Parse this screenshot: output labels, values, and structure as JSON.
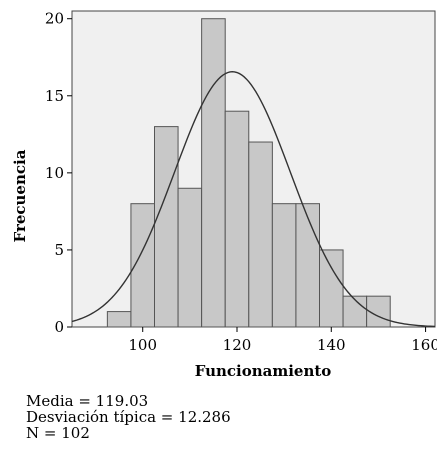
{
  "chart_data": {
    "type": "bar",
    "xlabel": "Funcionamiento",
    "ylabel": "Frecuencia",
    "xlim": [
      85,
      162
    ],
    "ylim": [
      0,
      20.5
    ],
    "x_ticks": [
      100,
      120,
      140,
      160
    ],
    "y_ticks": [
      0,
      5,
      10,
      15,
      20
    ],
    "bin_width": 5,
    "bins": [
      {
        "start": 92.5,
        "end": 97.5,
        "count": 1
      },
      {
        "start": 97.5,
        "end": 102.5,
        "count": 8
      },
      {
        "start": 102.5,
        "end": 107.5,
        "count": 13
      },
      {
        "start": 107.5,
        "end": 112.5,
        "count": 9
      },
      {
        "start": 112.5,
        "end": 117.5,
        "count": 20
      },
      {
        "start": 117.5,
        "end": 122.5,
        "count": 14
      },
      {
        "start": 122.5,
        "end": 127.5,
        "count": 12
      },
      {
        "start": 127.5,
        "end": 132.5,
        "count": 8
      },
      {
        "start": 132.5,
        "end": 137.5,
        "count": 8
      },
      {
        "start": 137.5,
        "end": 142.5,
        "count": 5
      },
      {
        "start": 142.5,
        "end": 147.5,
        "count": 2
      },
      {
        "start": 147.5,
        "end": 152.5,
        "count": 2
      }
    ],
    "normal_curve": {
      "mean": 119.03,
      "sd": 12.286,
      "n": 102
    },
    "colors": {
      "plot_background": "#f0f0f0",
      "bar_fill": "#c8c8c8",
      "bar_edge": "#555555",
      "curve": "#333333"
    }
  },
  "stats": {
    "mean_label": "Media = 119.03",
    "sd_label": "Desviación típica = 12.286",
    "n_label": "N = 102"
  }
}
